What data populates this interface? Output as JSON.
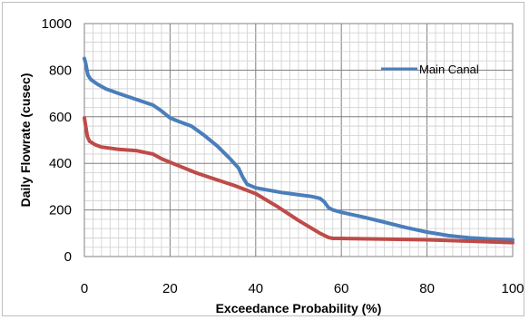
{
  "chart_data": {
    "type": "line",
    "title": "",
    "xlabel": "Exceedance Probability (%)",
    "ylabel": "Daily Flowrate (cusec)",
    "xlim": [
      0,
      100
    ],
    "ylim": [
      0,
      1000
    ],
    "xticks": [
      0,
      20,
      40,
      60,
      80,
      100
    ],
    "yticks": [
      0,
      200,
      400,
      600,
      800,
      1000
    ],
    "grid": "major and minor",
    "legend": "top-right",
    "series": [
      {
        "name": "Main Canal",
        "color": "#4a7ebb",
        "x": [
          0,
          0.3,
          0.8,
          1.5,
          3,
          5,
          8,
          12,
          16,
          18,
          20,
          22,
          25,
          28,
          31,
          34,
          36,
          37,
          38,
          40,
          43,
          46,
          50,
          53,
          55,
          56,
          57,
          58,
          60,
          65,
          70,
          75,
          80,
          85,
          90,
          95,
          100
        ],
        "y": [
          850,
          830,
          780,
          760,
          740,
          720,
          700,
          675,
          650,
          625,
          595,
          580,
          560,
          520,
          475,
          420,
          380,
          340,
          310,
          295,
          285,
          275,
          265,
          258,
          250,
          235,
          210,
          200,
          190,
          170,
          148,
          125,
          105,
          90,
          80,
          75,
          72
        ]
      },
      {
        "color": "#be4b48",
        "x": [
          0,
          0.3,
          0.7,
          1.2,
          2.5,
          4,
          8,
          12,
          16,
          18,
          22,
          26,
          30,
          35,
          40,
          45,
          50,
          55,
          57,
          58,
          60,
          70,
          80,
          90,
          100
        ],
        "y": [
          595,
          560,
          515,
          495,
          480,
          470,
          460,
          455,
          440,
          420,
          390,
          360,
          335,
          305,
          270,
          215,
          155,
          100,
          82,
          78,
          78,
          75,
          72,
          66,
          60
        ]
      }
    ]
  }
}
